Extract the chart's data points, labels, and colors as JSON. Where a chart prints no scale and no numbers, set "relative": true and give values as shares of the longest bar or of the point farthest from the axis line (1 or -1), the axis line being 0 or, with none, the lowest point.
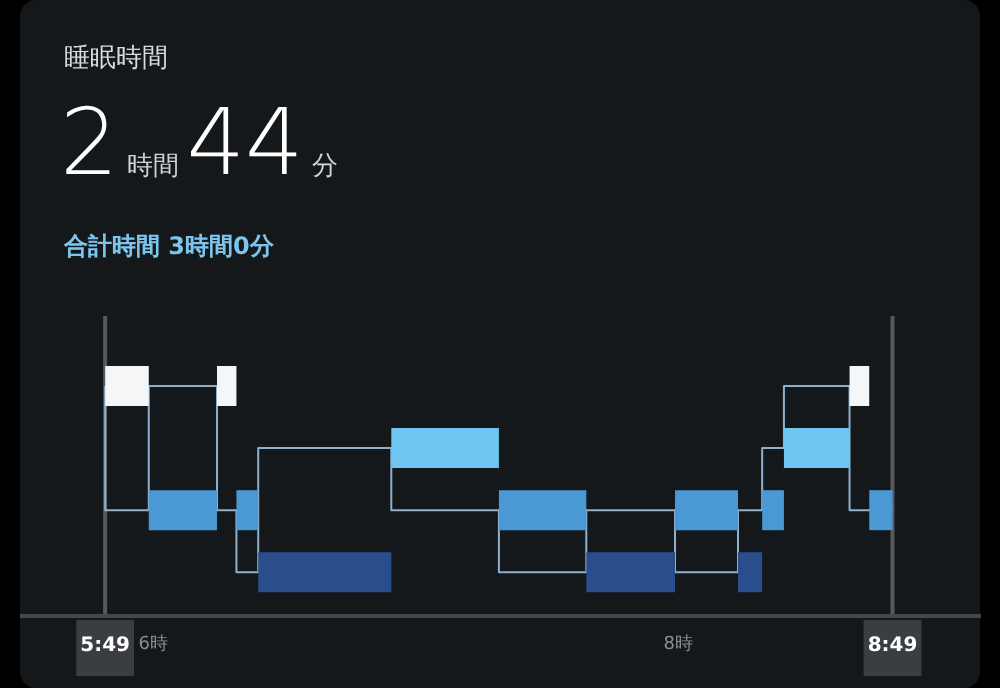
{
  "chart_data": {
    "type": "step",
    "title": "睡眠時間",
    "subtitle": "2時間44分",
    "annotations": [
      "合計時間 3時間0分"
    ],
    "relative": true,
    "series": [
      {
        "type": "line",
        "color": "#f4f6f8",
        "x": [
          5.817,
          5.983
        ],
        "values": [
          1,
          1
        ]
      },
      {
        "type": "line",
        "color": "#4a98d4",
        "x": [
          5.983,
          6.243
        ],
        "values": [
          0.46,
          0.46
        ]
      },
      {
        "type": "line",
        "color": "#f4f6f8",
        "x": [
          6.243,
          6.317
        ],
        "values": [
          1,
          1
        ]
      },
      {
        "type": "line",
        "color": "#4a98d4",
        "x": [
          6.317,
          6.4
        ],
        "values": [
          0.46,
          0.46
        ]
      },
      {
        "type": "line",
        "color": "#2a4d8c",
        "x": [
          6.4,
          6.907
        ],
        "values": [
          0.19,
          0.19
        ]
      },
      {
        "type": "line",
        "color": "#6ec6f0",
        "x": [
          6.907,
          7.317
        ],
        "values": [
          0.73,
          0.73
        ]
      },
      {
        "type": "line",
        "color": "#4a98d4",
        "x": [
          7.317,
          7.65
        ],
        "values": [
          0.46,
          0.46
        ]
      },
      {
        "type": "line",
        "color": "#2a4d8c",
        "x": [
          7.65,
          7.988
        ],
        "values": [
          0.19,
          0.19
        ]
      },
      {
        "type": "line",
        "color": "#4a98d4",
        "x": [
          7.988,
          8.228
        ],
        "values": [
          0.46,
          0.46
        ]
      },
      {
        "type": "line",
        "color": "#2a4d8c",
        "x": [
          8.228,
          8.32
        ],
        "values": [
          0.19,
          0.19
        ]
      },
      {
        "type": "line",
        "color": "#4a98d4",
        "x": [
          8.32,
          8.403
        ],
        "values": [
          0.46,
          0.46
        ]
      },
      {
        "type": "line",
        "color": "#6ec6f0",
        "x": [
          8.403,
          8.653
        ],
        "values": [
          0.73,
          0.73
        ]
      },
      {
        "type": "line",
        "color": "#f4f6f8",
        "x": [
          8.653,
          8.728
        ],
        "values": [
          1,
          1
        ]
      },
      {
        "type": "line",
        "color": "#4a98d4",
        "x": [
          8.728,
          8.817
        ],
        "values": [
          0.46,
          0.46
        ]
      },
      {
        "type": "step",
        "color": "#8fb0cc",
        "x": [
          5.817,
          5.983,
          6.243,
          6.317,
          6.4,
          6.907,
          7.317,
          7.65,
          7.988,
          8.228,
          8.32,
          8.403,
          8.653,
          8.728,
          8.817
        ],
        "values": [
          1,
          0.46,
          1,
          0.46,
          0.19,
          0.73,
          0.46,
          0.19,
          0.46,
          0.19,
          0.46,
          0.73,
          1,
          0.46,
          0.46
        ]
      }
    ],
    "xlim": [
      5.5,
      9.15
    ],
    "xticks": [
      {
        "value": 5.8167,
        "label": "5:49"
      },
      {
        "value": 6,
        "label": "6時"
      },
      {
        "value": 8,
        "label": "8時"
      },
      {
        "value": 8.8167,
        "label": "8:49"
      }
    ],
    "ref_lines": [
      {
        "axis": "x",
        "value": 5.8167,
        "color": "#55585c"
      },
      {
        "axis": "x",
        "value": 8.8167,
        "color": "#55585c"
      }
    ],
    "grid": false,
    "tick_labels": "x",
    "legend": false,
    "marker": "none"
  }
}
